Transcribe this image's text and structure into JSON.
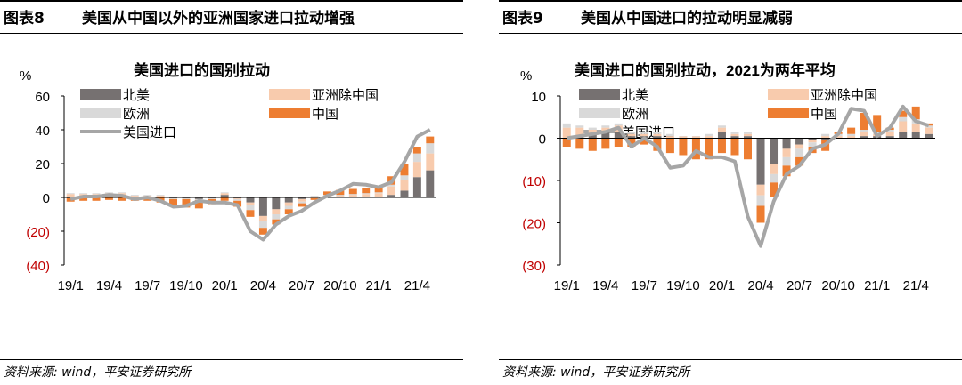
{
  "panels": [
    {
      "fig_label": "图表8",
      "fig_title": "美国从中国以外的亚洲国家进口拉动增强",
      "source": "资料来源: wind，平安证券研究所"
    },
    {
      "fig_label": "图表9",
      "fig_title": "美国从中国进口的拉动明显减弱",
      "source": "资料来源: wind，平安证券研究所"
    }
  ],
  "colors": {
    "north_america": "#767171",
    "asia_ex_china": "#F8CBAD",
    "europe": "#D9D9D9",
    "china": "#ED7D31",
    "us_imports": "#A6A6A6",
    "negative_tick": "#C00000"
  },
  "chart_data": [
    {
      "type": "bar",
      "stacked": true,
      "title": "美国进口的国别拉动",
      "ylabel": "%",
      "ylim": [
        -40,
        60
      ],
      "yticks": [
        60,
        40,
        20,
        0,
        -20,
        -40
      ],
      "ytick_labels": [
        "60",
        "40",
        "20",
        "0",
        "(20)",
        "(40)"
      ],
      "xtick_labels": [
        "19/1",
        "19/4",
        "19/7",
        "19/10",
        "20/1",
        "20/4",
        "20/7",
        "20/10",
        "21/1",
        "21/4"
      ],
      "xtick_months": [
        1,
        4,
        7,
        10,
        13,
        16,
        19,
        22,
        25,
        28
      ],
      "months": [
        1,
        2,
        3,
        4,
        5,
        6,
        7,
        8,
        9,
        10,
        11,
        12,
        13,
        14,
        15,
        16,
        17,
        18,
        19,
        20,
        21,
        22,
        23,
        24,
        25,
        26,
        27,
        28,
        29
      ],
      "legend": [
        "北美",
        "亚洲除中国",
        "欧洲",
        "中国",
        "美国进口"
      ],
      "series": [
        {
          "name": "北美",
          "key": "north_america",
          "values": [
            -0.5,
            0.5,
            1.0,
            1.5,
            1.5,
            0.5,
            0.5,
            0.5,
            -0.5,
            -0.5,
            -1.0,
            -0.5,
            1.5,
            -0.5,
            -3.0,
            -11.0,
            -7.0,
            -3.0,
            -1.0,
            0.5,
            0.5,
            0.5,
            0.5,
            0.5,
            0.5,
            1.5,
            4.0,
            12.0,
            16.0
          ]
        },
        {
          "name": "亚洲除中国",
          "key": "asia_ex_china",
          "values": [
            2.0,
            1.5,
            1.0,
            1.0,
            1.0,
            0.5,
            0.5,
            0.5,
            0.5,
            0.5,
            0.5,
            0.5,
            1.0,
            -0.5,
            -1.5,
            -3.0,
            -3.0,
            -2.0,
            -1.5,
            -0.5,
            0.5,
            0.5,
            1.0,
            1.5,
            2.0,
            5.0,
            6.0,
            9.0,
            10.0
          ]
        },
        {
          "name": "欧洲",
          "key": "europe",
          "values": [
            0.5,
            0.5,
            0.5,
            0.5,
            0.5,
            0.5,
            0.5,
            0.5,
            -0.5,
            -0.5,
            -0.5,
            -0.5,
            0.5,
            -1.0,
            -3.0,
            -4.0,
            -3.0,
            -2.0,
            -1.0,
            0.5,
            0.5,
            0.5,
            0.5,
            0.5,
            0.5,
            1.0,
            3.0,
            5.0,
            6.0
          ]
        },
        {
          "name": "中国",
          "key": "china",
          "values": [
            -2.0,
            -2.0,
            -2.0,
            -1.5,
            -2.0,
            -2.0,
            -2.0,
            -3.0,
            -4.0,
            -5.0,
            -5.0,
            -3.0,
            -2.0,
            -3.5,
            -4.0,
            -4.0,
            -3.0,
            -3.0,
            -2.0,
            -1.0,
            2.0,
            3.0,
            3.0,
            3.0,
            4.0,
            5.0,
            7.0,
            4.0,
            4.0
          ]
        },
        {
          "name": "美国进口",
          "key": "us_imports",
          "type": "line",
          "values": [
            -1.0,
            0.5,
            0.5,
            1.5,
            1.0,
            -1.0,
            0.0,
            -2.0,
            -5.5,
            -5.0,
            -2.0,
            -3.0,
            -3.0,
            -4.5,
            -20.0,
            -25.0,
            -16.0,
            -11.0,
            -8.0,
            -3.0,
            1.0,
            4.0,
            8.0,
            7.5,
            6.0,
            9.0,
            21.0,
            36.0,
            40.0
          ]
        }
      ]
    },
    {
      "type": "bar",
      "stacked": true,
      "title": "美国进口的国别拉动，2021为两年平均",
      "ylabel": "%",
      "ylim": [
        -30,
        10
      ],
      "yticks": [
        10,
        0,
        -10,
        -20,
        -30
      ],
      "ytick_labels": [
        "10",
        "0",
        "(10)",
        "(20)",
        "(30)"
      ],
      "xtick_labels": [
        "19/1",
        "19/4",
        "19/7",
        "19/10",
        "20/1",
        "20/4",
        "20/7",
        "20/10",
        "21/1",
        "21/4"
      ],
      "xtick_months": [
        1,
        4,
        7,
        10,
        13,
        16,
        19,
        22,
        25,
        28
      ],
      "months": [
        1,
        2,
        3,
        4,
        5,
        6,
        7,
        8,
        9,
        10,
        11,
        12,
        13,
        14,
        15,
        16,
        17,
        18,
        19,
        20,
        21,
        22,
        23,
        24,
        25,
        26,
        27,
        28,
        29
      ],
      "legend": [
        "北美",
        "亚洲除中国",
        "欧洲",
        "中国",
        "美国进口"
      ],
      "series": [
        {
          "name": "北美",
          "key": "north_america",
          "values": [
            0.0,
            0.5,
            1.0,
            1.5,
            1.5,
            0.5,
            0.5,
            0.5,
            0.0,
            0.0,
            0.0,
            0.0,
            1.5,
            0.5,
            0.5,
            -11.0,
            -6.0,
            -2.5,
            -1.5,
            -0.5,
            -0.5,
            0.0,
            0.0,
            0.5,
            0.5,
            0.5,
            1.5,
            1.5,
            1.0
          ]
        },
        {
          "name": "亚洲除中国",
          "key": "asia_ex_china",
          "values": [
            2.5,
            2.0,
            1.0,
            1.0,
            1.5,
            0.5,
            0.5,
            0.5,
            0.5,
            0.5,
            0.5,
            0.5,
            1.0,
            0.5,
            0.5,
            -2.5,
            -2.5,
            -2.0,
            -1.0,
            -0.5,
            0.5,
            0.5,
            0.5,
            1.0,
            0.5,
            1.0,
            2.5,
            2.0,
            1.5
          ]
        },
        {
          "name": "欧洲",
          "key": "europe",
          "values": [
            1.0,
            0.5,
            0.5,
            0.5,
            0.5,
            0.5,
            0.5,
            0.5,
            0.5,
            0.0,
            0.0,
            0.5,
            0.5,
            0.5,
            0.5,
            -2.5,
            -2.0,
            -2.0,
            -2.0,
            -1.0,
            0.5,
            0.5,
            0.5,
            0.5,
            0.5,
            0.5,
            1.0,
            1.0,
            0.5
          ]
        },
        {
          "name": "中国",
          "key": "china",
          "values": [
            -2.0,
            -2.5,
            -3.0,
            -2.5,
            -2.0,
            -2.0,
            -1.5,
            -3.0,
            -3.5,
            -4.0,
            -5.0,
            -5.0,
            -3.5,
            -4.0,
            -5.0,
            -4.0,
            -3.5,
            -2.5,
            -2.0,
            -1.5,
            -2.5,
            0.5,
            1.5,
            4.0,
            4.0,
            0.5,
            1.5,
            3.0,
            0.5
          ]
        },
        {
          "name": "美国进口",
          "key": "us_imports",
          "type": "line",
          "values": [
            0.0,
            0.5,
            1.0,
            1.5,
            2.5,
            -2.0,
            0.0,
            -2.0,
            -7.0,
            -6.5,
            -3.0,
            -4.5,
            -4.5,
            -5.5,
            -18.5,
            -25.5,
            -15.0,
            -8.5,
            -6.5,
            -2.5,
            -1.5,
            1.0,
            7.0,
            6.5,
            0.5,
            2.5,
            7.5,
            4.0,
            3.0
          ]
        }
      ]
    }
  ]
}
